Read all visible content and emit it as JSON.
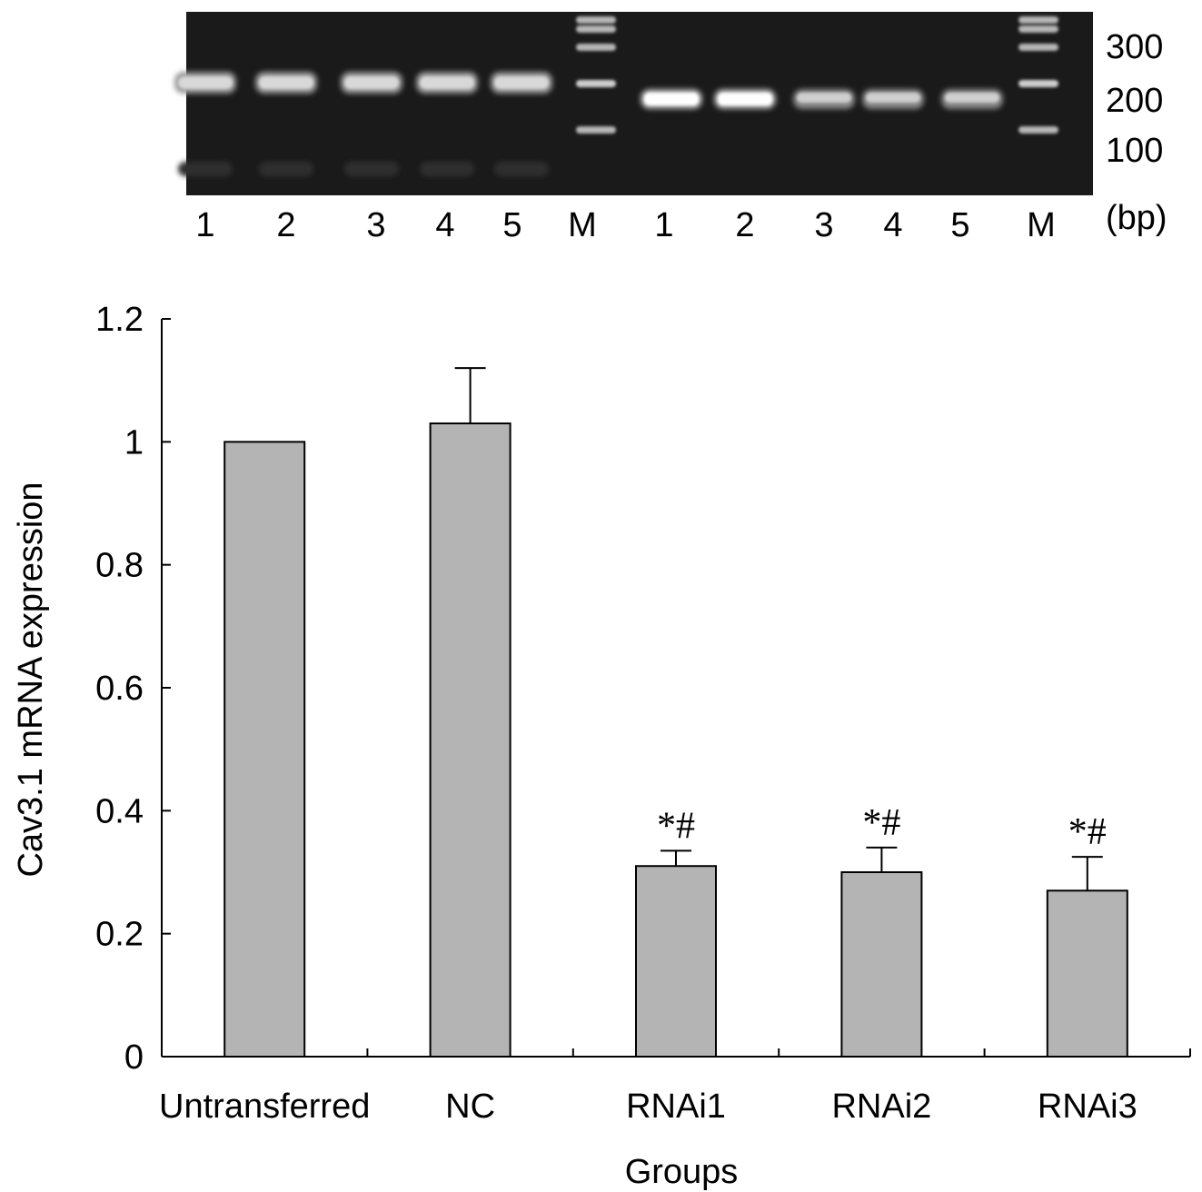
{
  "gel": {
    "lane_labels": [
      "1",
      "2",
      "3",
      "4",
      "5",
      "M",
      "1",
      "2",
      "3",
      "4",
      "5",
      "M"
    ],
    "size_labels": [
      "300",
      "200",
      "100"
    ],
    "unit_label": "(bp)"
  },
  "chart_data": {
    "type": "bar",
    "categories": [
      "Untransferred",
      "NC",
      "RNAi1",
      "RNAi2",
      "RNAi3"
    ],
    "values": [
      1.0,
      1.03,
      0.31,
      0.3,
      0.27
    ],
    "errors": [
      0,
      0.09,
      0.025,
      0.04,
      0.055
    ],
    "annotations": [
      "",
      "",
      "*#",
      "*#",
      "*#"
    ],
    "xlabel": "Groups",
    "ylabel": "Cav3.1 mRNA expression",
    "ylim": [
      0,
      1.2
    ],
    "yticks": [
      0,
      0.2,
      0.4,
      0.6,
      0.8,
      1,
      1.2
    ],
    "ytick_labels": [
      "0",
      "0.2",
      "0.4",
      "0.6",
      "0.8",
      "1",
      "1.2"
    ],
    "bar_color": "#b4b4b4",
    "grid": false,
    "legend": "none"
  }
}
